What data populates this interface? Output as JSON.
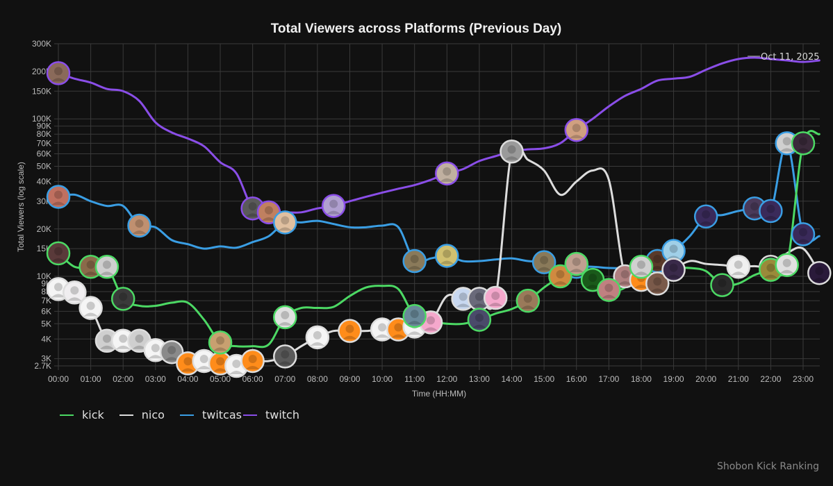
{
  "chart_data": {
    "type": "line",
    "title": "Total Viewers across Platforms (Previous Day)",
    "xlabel": "Time (HH:MM)",
    "ylabel": "Total Viewers (log scale)",
    "yscale": "log",
    "ylim": [
      2700,
      300000
    ],
    "xlim_hours": [
      0,
      23.5
    ],
    "x_ticks": [
      "00:00",
      "01:00",
      "02:00",
      "03:00",
      "04:00",
      "05:00",
      "06:00",
      "07:00",
      "08:00",
      "09:00",
      "10:00",
      "11:00",
      "12:00",
      "13:00",
      "14:00",
      "15:00",
      "16:00",
      "17:00",
      "18:00",
      "19:00",
      "20:00",
      "21:00",
      "22:00",
      "23:00"
    ],
    "y_ticks": [
      {
        "value": 2700,
        "label": "2.7K"
      },
      {
        "value": 3000,
        "label": "3K"
      },
      {
        "value": 4000,
        "label": "4K"
      },
      {
        "value": 5000,
        "label": "5K"
      },
      {
        "value": 6000,
        "label": "6K"
      },
      {
        "value": 7000,
        "label": "7K"
      },
      {
        "value": 8000,
        "label": "8K"
      },
      {
        "value": 9000,
        "label": "9K"
      },
      {
        "value": 10000,
        "label": "10K"
      },
      {
        "value": 15000,
        "label": "15K"
      },
      {
        "value": 20000,
        "label": "20K"
      },
      {
        "value": 30000,
        "label": "30K"
      },
      {
        "value": 40000,
        "label": "40K"
      },
      {
        "value": 50000,
        "label": "50K"
      },
      {
        "value": 60000,
        "label": "60K"
      },
      {
        "value": 70000,
        "label": "70K"
      },
      {
        "value": 80000,
        "label": "80K"
      },
      {
        "value": 90000,
        "label": "90K"
      },
      {
        "value": 100000,
        "label": "100K"
      },
      {
        "value": 150000,
        "label": "150K"
      },
      {
        "value": 200000,
        "label": "200K"
      },
      {
        "value": 300000,
        "label": "300K"
      }
    ],
    "grid": true,
    "legend_position": "bottom-left",
    "annotation": "Oct 11, 2025",
    "series": [
      {
        "name": "kick",
        "color": "#4cd964",
        "x": [
          0,
          0.5,
          1,
          1.5,
          2,
          2.5,
          3,
          3.5,
          4,
          4.5,
          5,
          5.5,
          6,
          6.5,
          7,
          7.5,
          8,
          8.5,
          9,
          9.5,
          10,
          10.5,
          11,
          11.5,
          12,
          12.5,
          13,
          13.5,
          14,
          14.5,
          15,
          15.5,
          16,
          16.5,
          17,
          17.5,
          18,
          18.5,
          19,
          19.5,
          20,
          20.5,
          21,
          21.5,
          22,
          22.5,
          23,
          23.5
        ],
        "values": [
          14000,
          11500,
          11500,
          11500,
          7200,
          6500,
          6500,
          6800,
          6800,
          5300,
          3800,
          3600,
          3600,
          3700,
          5500,
          6300,
          6300,
          6400,
          7500,
          8500,
          8700,
          8300,
          5600,
          5200,
          5000,
          5000,
          5300,
          5800,
          6200,
          7000,
          8500,
          10000,
          12000,
          9500,
          8200,
          8500,
          11500,
          11000,
          11300,
          11300,
          10800,
          8800,
          9000,
          10200,
          11000,
          11800,
          70000,
          80000
        ],
        "markers": [
          0,
          1,
          1.5,
          2,
          5,
          7,
          11,
          13,
          14.5,
          15.5,
          16,
          16.5,
          17,
          18,
          20.5,
          22,
          22.5,
          23
        ]
      },
      {
        "name": "nico",
        "color": "#dddddd",
        "x": [
          0,
          0.5,
          1,
          1.5,
          2,
          2.5,
          3,
          3.5,
          4,
          4.5,
          5,
          5.5,
          6,
          6.5,
          7,
          7.5,
          8,
          8.5,
          9,
          9.5,
          10,
          10.5,
          11,
          11.5,
          12,
          12.5,
          13,
          13.5,
          14,
          14.5,
          15,
          15.5,
          16,
          16.5,
          17,
          17.5,
          18,
          18.5,
          19,
          19.5,
          20,
          20.5,
          21,
          21.5,
          22,
          22.5,
          23,
          23.5
        ],
        "values": [
          8300,
          7900,
          6300,
          3900,
          3900,
          3900,
          3400,
          3300,
          2800,
          2900,
          2800,
          2700,
          2900,
          2900,
          3100,
          3600,
          4100,
          4500,
          4500,
          4500,
          4600,
          4600,
          4800,
          5100,
          7500,
          7200,
          7200,
          7300,
          62000,
          55000,
          47000,
          33000,
          40000,
          47000,
          41000,
          10000,
          9500,
          9000,
          11000,
          12500,
          12000,
          11800,
          11500,
          11600,
          11500,
          14000,
          15000,
          10500
        ],
        "markers": [
          0,
          0.5,
          1,
          1.5,
          2,
          2.5,
          3,
          3.5,
          4,
          4.5,
          5,
          5.5,
          6,
          7,
          8,
          9,
          10,
          10.5,
          11,
          11.5,
          12.5,
          13,
          13.5,
          14,
          17.5,
          18,
          18.5,
          19,
          21,
          22,
          23.5
        ]
      },
      {
        "name": "twitcas",
        "color": "#3a9ee4",
        "x": [
          0,
          0.5,
          1,
          1.5,
          2,
          2.5,
          3,
          3.5,
          4,
          4.5,
          5,
          5.5,
          6,
          6.5,
          7,
          7.5,
          8,
          8.5,
          9,
          9.5,
          10,
          10.5,
          11,
          11.5,
          12,
          12.5,
          13,
          13.5,
          14,
          14.5,
          15,
          15.5,
          16,
          16.5,
          17,
          17.5,
          18,
          18.5,
          19,
          19.5,
          20,
          20.5,
          21,
          21.5,
          22,
          22.5,
          23,
          23.5
        ],
        "values": [
          32000,
          33000,
          30000,
          28000,
          28000,
          21000,
          20500,
          17000,
          16000,
          15000,
          15500,
          15200,
          16500,
          18000,
          22000,
          22000,
          22500,
          21500,
          20500,
          20500,
          21000,
          20500,
          12500,
          13000,
          13500,
          12500,
          12500,
          12800,
          13000,
          12500,
          12300,
          11000,
          11500,
          11500,
          11300,
          11300,
          11500,
          12500,
          14500,
          18000,
          24000,
          24500,
          26000,
          27000,
          26000,
          70000,
          18500,
          18000
        ],
        "markers": [
          0,
          2.5,
          7,
          11,
          12,
          15,
          16,
          18.5,
          19,
          20,
          21.5,
          22,
          22.5,
          23
        ]
      },
      {
        "name": "twitch",
        "color": "#8a4ee8",
        "x": [
          0,
          0.5,
          1,
          1.5,
          2,
          2.5,
          3,
          3.5,
          4,
          4.5,
          5,
          5.5,
          6,
          6.5,
          7,
          7.5,
          8,
          8.5,
          9,
          9.5,
          10,
          10.5,
          11,
          11.5,
          12,
          12.5,
          13,
          13.5,
          14,
          14.5,
          15,
          15.5,
          16,
          16.5,
          17,
          17.5,
          18,
          18.5,
          19,
          19.5,
          20,
          20.5,
          21,
          21.5,
          22,
          22.5,
          23,
          23.5
        ],
        "values": [
          195000,
          180000,
          170000,
          155000,
          150000,
          130000,
          95000,
          82000,
          75000,
          67000,
          53000,
          45000,
          27000,
          25500,
          25500,
          25500,
          27000,
          28000,
          30000,
          32000,
          34000,
          36000,
          38000,
          41000,
          45000,
          48000,
          54000,
          58000,
          62000,
          64000,
          65000,
          70000,
          85000,
          100000,
          120000,
          140000,
          155000,
          175000,
          180000,
          185000,
          205000,
          225000,
          240000,
          245000,
          240000,
          235000,
          230000,
          235000
        ],
        "markers": [
          0,
          6,
          6.5,
          8.5,
          12,
          16
        ]
      }
    ]
  },
  "legend": {
    "items": [
      {
        "label": "kick",
        "color": "#4cd964"
      },
      {
        "label": "nico",
        "color": "#dddddd"
      },
      {
        "label": "twitcas",
        "color": "#3a9ee4"
      },
      {
        "label": "twitch",
        "color": "#8a4ee8"
      }
    ]
  },
  "footer": {
    "watermark": "Shobon Kick Ranking"
  }
}
